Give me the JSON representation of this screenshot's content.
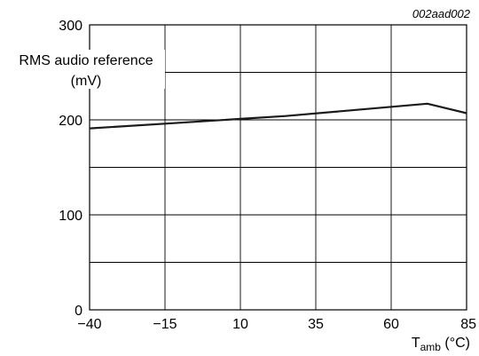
{
  "chart_data": {
    "type": "line",
    "figure_code": "002aad002",
    "ylabel_line1": "RMS audio reference",
    "ylabel_line2": "(mV)",
    "xlabel_main": "T",
    "xlabel_sub": "amb",
    "xlabel_unit": " (°C)",
    "xlim": [
      -40,
      85
    ],
    "ylim": [
      0,
      300
    ],
    "x_ticks": [
      -40,
      -15,
      10,
      35,
      60,
      85
    ],
    "x_tick_labels": [
      "−40",
      "−15",
      "10",
      "35",
      "60",
      "85"
    ],
    "y_ticks": [
      0,
      100,
      200,
      300
    ],
    "y_tick_labels": [
      "0",
      "100",
      "200",
      "300"
    ],
    "grid": true,
    "series": [
      {
        "x": [
          -40,
          -15,
          10,
          25,
          72,
          85
        ],
        "y": [
          191,
          196,
          201,
          204,
          217,
          207
        ]
      }
    ]
  }
}
